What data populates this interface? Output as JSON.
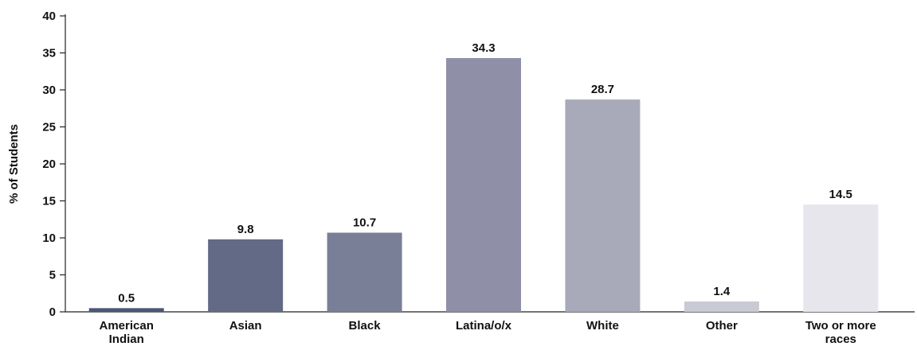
{
  "chart_data": {
    "type": "bar",
    "title": "",
    "xlabel": "",
    "ylabel": "% of Students",
    "ylim": [
      0,
      40
    ],
    "yticks": [
      0,
      5,
      10,
      15,
      20,
      25,
      30,
      35,
      40
    ],
    "grid": false,
    "categories": [
      [
        "American",
        "Indian"
      ],
      [
        "Asian"
      ],
      [
        "Black"
      ],
      [
        "Latina/o/x"
      ],
      [
        "White"
      ],
      [
        "Other"
      ],
      [
        "Two or more",
        "races"
      ]
    ],
    "values": [
      0.5,
      9.8,
      10.7,
      34.3,
      28.7,
      1.4,
      14.5
    ],
    "value_labels": [
      "0.5",
      "9.8",
      "10.7",
      "34.3",
      "28.7",
      "1.4",
      "14.5"
    ],
    "colors": [
      "#4b5775",
      "#636a85",
      "#7a7f98",
      "#8f90a7",
      "#a8aab9",
      "#c9cad4",
      "#e6e6ec"
    ]
  }
}
